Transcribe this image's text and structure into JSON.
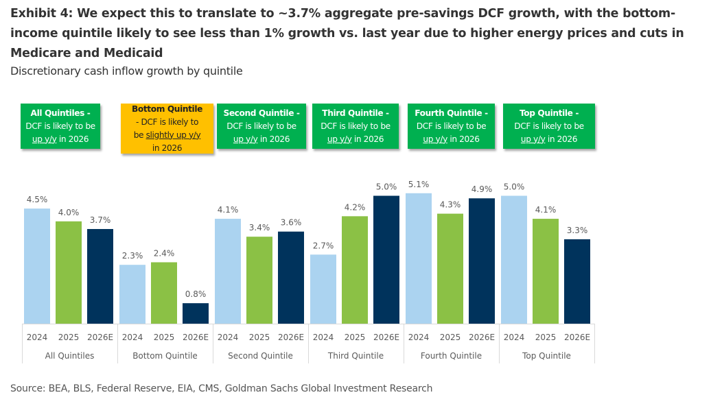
{
  "header": {
    "title": "Exhibit 4: We expect this to translate to ~3.7% aggregate pre-savings DCF growth, with the bottom-income quintile likely to see less than 1% growth vs. last year due to higher energy prices and cuts in Medicare and Medicaid",
    "subtitle": "Discretionary cash inflow growth by quintile"
  },
  "callouts": [
    {
      "head": "All Quintiles -",
      "line1": "DCF is likely to be",
      "underline": "up y/y",
      "tail": " in 2026",
      "color": "#00b050"
    },
    {
      "head": "Bottom Quintile",
      "line1": "- DCF is likely to",
      "pre": "be ",
      "underline": "slightly up y/y",
      "tail": "in 2026",
      "color": "#ffc000"
    },
    {
      "head": "Second Quintile -",
      "line1": "DCF is likely to be",
      "underline": "up y/y",
      "tail": " in 2026",
      "color": "#00b050"
    },
    {
      "head": "Third Quintile -",
      "line1": "DCF is likely to be",
      "underline": "up y/y",
      "tail": " in 2026",
      "color": "#00b050"
    },
    {
      "head": "Fourth Quintile -",
      "line1": "DCF is likely to be",
      "underline": "up y/y",
      "tail": " in 2026",
      "color": "#00b050"
    },
    {
      "head": "Top Quintile -",
      "line1": "DCF is likely to be",
      "underline": "up y/y",
      "tail": " in 2026",
      "color": "#00b050"
    }
  ],
  "colors": {
    "2024": "#abd3f0",
    "2025": "#8bc145",
    "2026E": "#00335c"
  },
  "chart_data": {
    "type": "bar",
    "title": "Discretionary cash inflow growth by quintile",
    "xlabel": "",
    "ylabel": "",
    "ylim": [
      0,
      5.1
    ],
    "grid": false,
    "value_format": "percent_1dp",
    "groups": [
      "All Quintiles",
      "Bottom Quintile",
      "Second Quintile",
      "Third Quintile",
      "Fourth Quintile",
      "Top Quintile"
    ],
    "categories": [
      "2024",
      "2025",
      "2026E"
    ],
    "series": [
      {
        "name": "All Quintiles",
        "values": [
          4.5,
          4.0,
          3.7
        ]
      },
      {
        "name": "Bottom Quintile",
        "values": [
          2.3,
          2.4,
          0.8
        ]
      },
      {
        "name": "Second Quintile",
        "values": [
          4.1,
          3.4,
          3.6
        ]
      },
      {
        "name": "Third Quintile",
        "values": [
          2.7,
          4.2,
          5.0
        ]
      },
      {
        "name": "Fourth Quintile",
        "values": [
          5.1,
          4.3,
          4.9
        ]
      },
      {
        "name": "Top Quintile",
        "values": [
          5.0,
          4.1,
          3.3
        ]
      }
    ]
  },
  "source": "Source: BEA, BLS, Federal Reserve, EIA, CMS, Goldman Sachs Global Investment Research"
}
